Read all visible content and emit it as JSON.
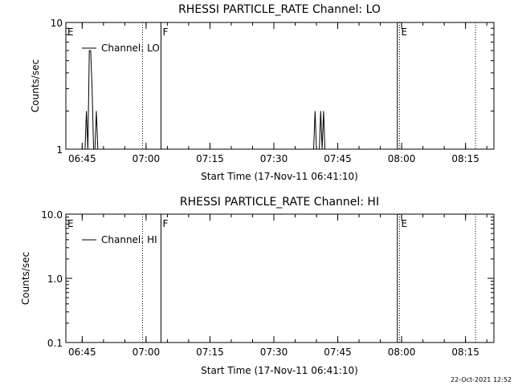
{
  "chart_data": [
    {
      "type": "line",
      "title": "RHESSI PARTICLE_RATE Channel: LO",
      "xlabel": "Start Time (17-Nov-11 06:41:10)",
      "ylabel": "Counts/sec",
      "yscale": "log",
      "ylim": [
        1,
        10
      ],
      "y_ticks": [
        "1",
        "10"
      ],
      "xlim": [
        "06:41:10",
        "08:21:40"
      ],
      "x_ticks": [
        "06:45",
        "07:00",
        "07:15",
        "07:30",
        "07:45",
        "08:00",
        "08:15"
      ],
      "legend": "top-left",
      "series": [
        {
          "name": "Channel: LO",
          "x": [
            "06:45:20",
            "06:45:40",
            "06:46:00",
            "06:46:20",
            "06:46:40",
            "06:47:00",
            "06:47:20",
            "06:47:40",
            "06:48:00",
            "06:48:20",
            "06:48:40",
            "06:48:55",
            "06:49:10",
            "07:39:20",
            "07:39:40",
            "07:40:00",
            "07:40:40",
            "07:41:00",
            "07:41:20",
            "07:41:40",
            "07:42:00",
            "07:42:20",
            "07:42:40"
          ],
          "y": [
            1,
            1,
            2,
            1,
            6,
            6,
            3,
            1,
            1,
            2,
            1,
            1,
            1,
            1,
            2,
            1,
            1,
            2,
            1,
            2,
            1,
            1,
            1
          ]
        }
      ],
      "markers": [
        {
          "label": "E",
          "time": "06:41:10",
          "style": "solid"
        },
        {
          "label": "",
          "time": "06:59:10",
          "style": "dotted"
        },
        {
          "label": "F",
          "time": "07:03:30",
          "style": "solid"
        },
        {
          "label": "",
          "time": "07:59:00",
          "style": "solid"
        },
        {
          "label": "E",
          "time": "07:59:30",
          "style": "dotted"
        },
        {
          "label": "",
          "time": "08:17:20",
          "style": "dotted"
        }
      ]
    },
    {
      "type": "line",
      "title": "RHESSI PARTICLE_RATE Channel: HI",
      "xlabel": "Start Time (17-Nov-11 06:41:10)",
      "ylabel": "Counts/sec",
      "yscale": "log",
      "ylim": [
        0.1,
        10
      ],
      "y_ticks": [
        "0.1",
        "1.0",
        "10.0"
      ],
      "xlim": [
        "06:41:10",
        "08:21:40"
      ],
      "x_ticks": [
        "06:45",
        "07:00",
        "07:15",
        "07:30",
        "07:45",
        "08:00",
        "08:15"
      ],
      "legend": "top-left",
      "series": [
        {
          "name": "Channel: HI",
          "x": [],
          "y": []
        }
      ],
      "markers": [
        {
          "label": "E",
          "time": "06:41:10",
          "style": "solid"
        },
        {
          "label": "",
          "time": "06:59:10",
          "style": "dotted"
        },
        {
          "label": "F",
          "time": "07:03:30",
          "style": "solid"
        },
        {
          "label": "",
          "time": "07:59:00",
          "style": "solid"
        },
        {
          "label": "E",
          "time": "07:59:30",
          "style": "dotted"
        },
        {
          "label": "",
          "time": "08:17:20",
          "style": "dotted"
        }
      ]
    }
  ],
  "footer": {
    "timestamp": "22-Oct-2021 12:52"
  }
}
